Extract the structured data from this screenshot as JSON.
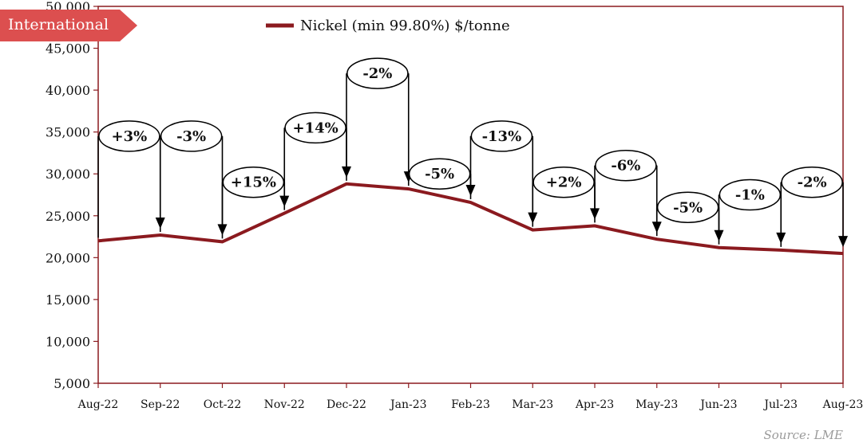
{
  "badge": "International",
  "source": "Source: LME",
  "colors": {
    "line": "#8b1a1f",
    "frame": "#8b1a1f",
    "badge": "#dc4f4f"
  },
  "chart_data": {
    "type": "line",
    "categories": [
      "Aug-22",
      "Sep-22",
      "Oct-22",
      "Nov-22",
      "Dec-22",
      "Jan-23",
      "Feb-23",
      "Mar-23",
      "Apr-23",
      "May-23",
      "Jun-23",
      "Jul-23",
      "Aug-23"
    ],
    "series": [
      {
        "name": "Nickel (min 99.80%) $/tonne",
        "values": [
          22000,
          22700,
          21900,
          25300,
          28800,
          28200,
          26600,
          23300,
          23800,
          22200,
          21200,
          20900,
          20500
        ]
      }
    ],
    "yticks": [
      "5,000",
      "10,000",
      "15,000",
      "20,000",
      "25,000",
      "30,000",
      "35,000",
      "40,000",
      "45,000",
      "50,000"
    ],
    "ylim": [
      5000,
      50000
    ],
    "changes": [
      "+3%",
      "-3%",
      "+15%",
      "+14%",
      "-2%",
      "-5%",
      "-13%",
      "+2%",
      "-6%",
      "-5%",
      "-1%",
      "-2%"
    ],
    "change_levels": [
      34500,
      34500,
      29000,
      35500,
      42000,
      30000,
      34500,
      29000,
      31000,
      26000,
      27500,
      29000
    ],
    "legend_position": "top"
  }
}
